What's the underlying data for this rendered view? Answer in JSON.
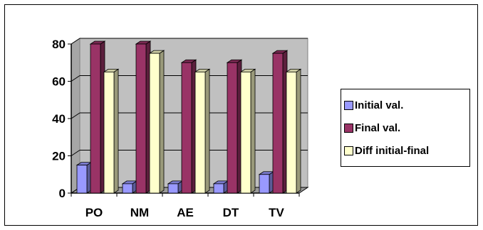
{
  "chart_data": {
    "type": "bar",
    "style": "3d-clustered-column",
    "categories": [
      "PO",
      "NM",
      "AE",
      "DT",
      "TV"
    ],
    "series": [
      {
        "name": "Initial val.",
        "values": [
          15,
          5,
          5,
          5,
          10
        ],
        "color": "#9999ff"
      },
      {
        "name": "Final val.",
        "values": [
          80,
          80,
          70,
          70,
          75
        ],
        "color": "#993366"
      },
      {
        "name": "Diff initial-final",
        "values": [
          65,
          75,
          65,
          65,
          65
        ],
        "color": "#ffffcc"
      }
    ],
    "ylim": [
      0,
      80
    ],
    "yticks": [
      0,
      20,
      40,
      60,
      80
    ],
    "grid": true,
    "legend_position": "right",
    "plot_background": "#c0c0c0"
  }
}
